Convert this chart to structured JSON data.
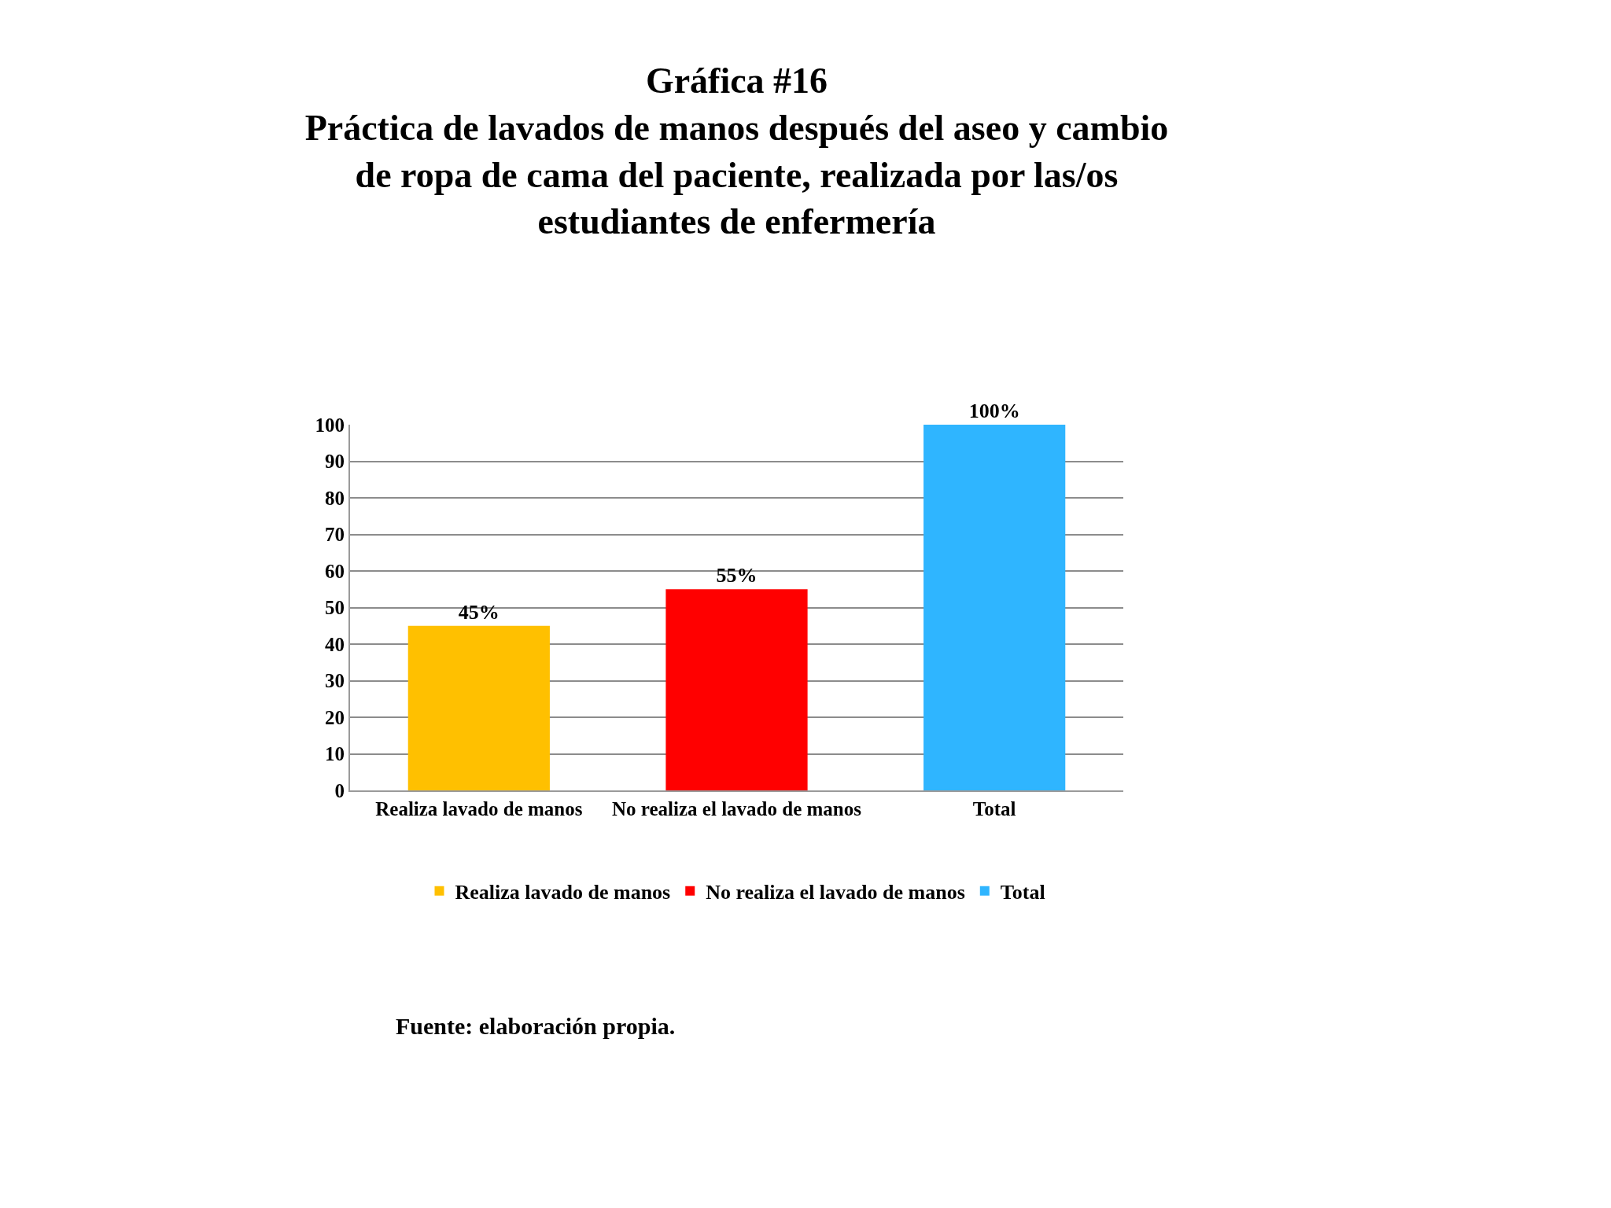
{
  "chart_data": {
    "type": "bar",
    "title": "Gráfica #16\nPráctica de lavados de manos después del aseo y cambio\nde ropa de cama del paciente, realizada por las/os\nestudiantes de enfermería",
    "categories": [
      "Realiza lavado de manos",
      "No realiza el lavado de manos",
      "Total"
    ],
    "series": [
      {
        "name": "Realiza lavado de manos",
        "color": "#ffc000",
        "values": [
          45,
          null,
          null
        ],
        "value_labels": [
          "45%",
          null,
          null
        ]
      },
      {
        "name": "No realiza el lavado de manos",
        "color": "#ff0000",
        "values": [
          null,
          55,
          null
        ],
        "value_labels": [
          null,
          "55%",
          null
        ]
      },
      {
        "name": "Total",
        "color": "#2fb5ff",
        "values": [
          null,
          null,
          100
        ],
        "value_labels": [
          null,
          null,
          "100%"
        ]
      }
    ],
    "ylim": [
      0,
      100
    ],
    "yticks": [
      0,
      10,
      20,
      30,
      40,
      50,
      60,
      70,
      80,
      90,
      100
    ],
    "grid": "y",
    "legend": "bottom",
    "annotations": [
      "Fuente: elaboración propia."
    ]
  }
}
